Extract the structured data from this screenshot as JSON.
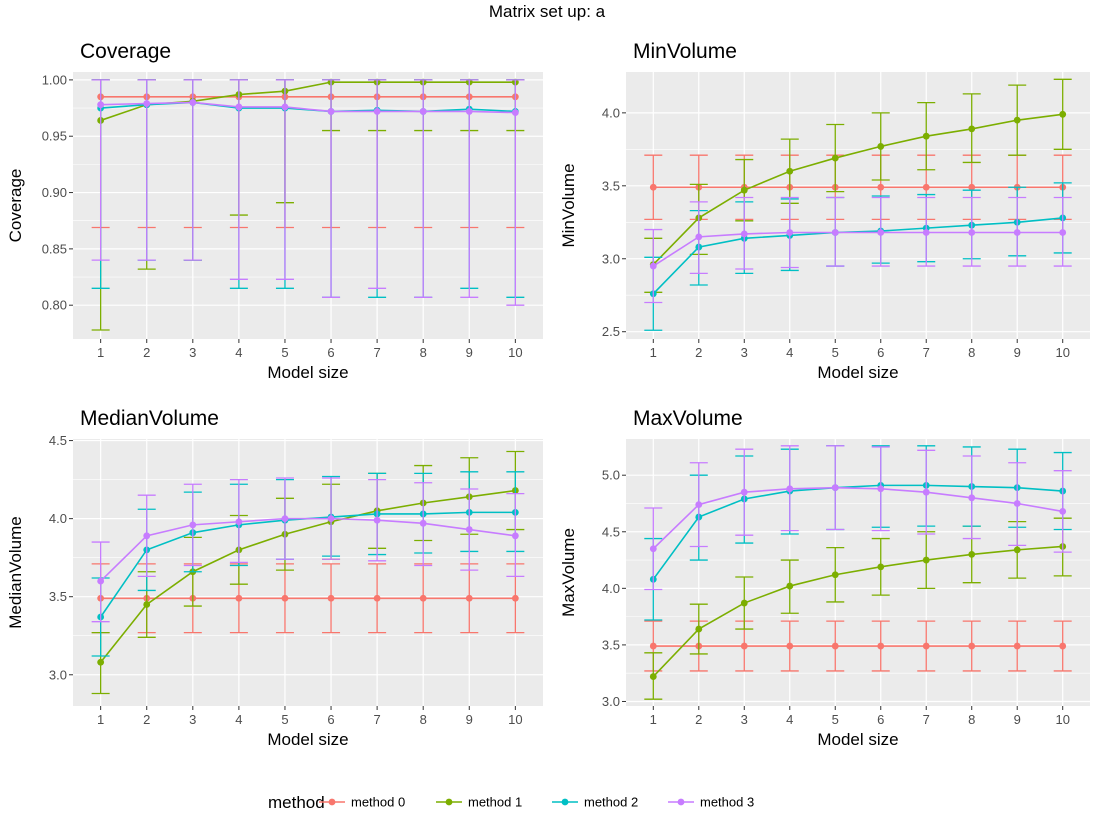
{
  "figure": {
    "title": "Matrix set up: a"
  },
  "legend": {
    "title": "method",
    "position": "bottom",
    "entries": [
      "method 0",
      "method 1",
      "method 2",
      "method 3"
    ]
  },
  "colors": {
    "method 0": "#F8766D",
    "method 1": "#7CAE00",
    "method 2": "#00BFC4",
    "method 3": "#C77CFF",
    "panel_bg": "#EBEBEB",
    "grid": "#FFFFFF"
  },
  "chart_data": [
    {
      "type": "line",
      "title": "Coverage",
      "xlabel": "Model size",
      "ylabel": "Coverage",
      "x": [
        1,
        2,
        3,
        4,
        5,
        6,
        7,
        8,
        9,
        10
      ],
      "ylim": [
        0.77,
        1.007
      ],
      "yticks": [
        0.8,
        0.85,
        0.9,
        0.95,
        1.0
      ],
      "ytick_labels": [
        "0.80",
        "0.85",
        "0.90",
        "0.95",
        "1.00"
      ],
      "grid": true,
      "error_bars": true,
      "series": [
        {
          "name": "method 0",
          "values": [
            0.985,
            0.985,
            0.985,
            0.985,
            0.985,
            0.985,
            0.985,
            0.985,
            0.985,
            0.985
          ],
          "lower": [
            0.869,
            0.869,
            0.869,
            0.869,
            0.869,
            0.869,
            0.869,
            0.869,
            0.869,
            0.869
          ],
          "upper": [
            1.0,
            1.0,
            1.0,
            1.0,
            1.0,
            1.0,
            1.0,
            1.0,
            1.0,
            1.0
          ]
        },
        {
          "name": "method 1",
          "values": [
            0.964,
            0.978,
            0.981,
            0.987,
            0.99,
            0.998,
            0.998,
            0.998,
            0.998,
            0.998
          ],
          "lower": [
            0.778,
            0.832,
            0.84,
            0.88,
            0.891,
            0.955,
            0.955,
            0.955,
            0.955,
            0.955
          ],
          "upper": [
            1.0,
            1.0,
            1.0,
            1.0,
            1.0,
            1.0,
            1.0,
            1.0,
            1.0,
            1.0
          ]
        },
        {
          "name": "method 2",
          "values": [
            0.975,
            0.978,
            0.98,
            0.975,
            0.975,
            0.972,
            0.973,
            0.972,
            0.974,
            0.972
          ],
          "lower": [
            0.815,
            0.84,
            0.84,
            0.815,
            0.815,
            0.807,
            0.807,
            0.807,
            0.815,
            0.807
          ],
          "upper": [
            1.0,
            1.0,
            1.0,
            1.0,
            1.0,
            1.0,
            1.0,
            1.0,
            1.0,
            1.0
          ]
        },
        {
          "name": "method 3",
          "values": [
            0.978,
            0.979,
            0.98,
            0.976,
            0.976,
            0.972,
            0.972,
            0.972,
            0.972,
            0.971
          ],
          "lower": [
            0.84,
            0.84,
            0.84,
            0.823,
            0.823,
            0.807,
            0.815,
            0.807,
            0.807,
            0.8
          ],
          "upper": [
            1.0,
            1.0,
            1.0,
            1.0,
            1.0,
            1.0,
            1.0,
            1.0,
            1.0,
            1.0
          ]
        }
      ]
    },
    {
      "type": "line",
      "title": "MinVolume",
      "xlabel": "Model size",
      "ylabel": "MinVolume",
      "x": [
        1,
        2,
        3,
        4,
        5,
        6,
        7,
        8,
        9,
        10
      ],
      "ylim": [
        2.45,
        4.28
      ],
      "yticks": [
        2.5,
        3.0,
        3.5,
        4.0
      ],
      "ytick_labels": [
        "2.5",
        "3.0",
        "3.5",
        "4.0"
      ],
      "grid": true,
      "error_bars": true,
      "series": [
        {
          "name": "method 0",
          "values": [
            3.49,
            3.49,
            3.49,
            3.49,
            3.49,
            3.49,
            3.49,
            3.49,
            3.49,
            3.49
          ],
          "lower": [
            3.27,
            3.27,
            3.27,
            3.27,
            3.27,
            3.27,
            3.27,
            3.27,
            3.27,
            3.27
          ],
          "upper": [
            3.71,
            3.71,
            3.71,
            3.71,
            3.71,
            3.71,
            3.71,
            3.71,
            3.71,
            3.71
          ]
        },
        {
          "name": "method 1",
          "values": [
            2.96,
            3.28,
            3.47,
            3.6,
            3.69,
            3.77,
            3.84,
            3.89,
            3.95,
            3.99
          ],
          "lower": [
            2.77,
            3.03,
            3.26,
            3.38,
            3.46,
            3.54,
            3.61,
            3.66,
            3.71,
            3.75
          ],
          "upper": [
            3.14,
            3.51,
            3.68,
            3.82,
            3.92,
            4.0,
            4.07,
            4.13,
            4.19,
            4.23
          ]
        },
        {
          "name": "method 2",
          "values": [
            2.76,
            3.08,
            3.14,
            3.16,
            3.18,
            3.19,
            3.21,
            3.23,
            3.25,
            3.28
          ],
          "lower": [
            2.51,
            2.82,
            2.9,
            2.92,
            2.95,
            2.97,
            2.98,
            3.0,
            3.02,
            3.04
          ],
          "upper": [
            3.01,
            3.33,
            3.39,
            3.41,
            3.42,
            3.43,
            3.44,
            3.47,
            3.49,
            3.52
          ]
        },
        {
          "name": "method 3",
          "values": [
            2.95,
            3.15,
            3.17,
            3.18,
            3.18,
            3.18,
            3.18,
            3.18,
            3.18,
            3.18
          ],
          "lower": [
            2.7,
            2.9,
            2.93,
            2.94,
            2.95,
            2.95,
            2.95,
            2.95,
            2.95,
            2.95
          ],
          "upper": [
            3.2,
            3.39,
            3.42,
            3.42,
            3.42,
            3.42,
            3.42,
            3.42,
            3.42,
            3.42
          ]
        }
      ]
    },
    {
      "type": "line",
      "title": "MedianVolume",
      "xlabel": "Model size",
      "ylabel": "MedianVolume",
      "x": [
        1,
        2,
        3,
        4,
        5,
        6,
        7,
        8,
        9,
        10
      ],
      "ylim": [
        2.8,
        4.51
      ],
      "yticks": [
        3.0,
        3.5,
        4.0,
        4.5
      ],
      "ytick_labels": [
        "3.0",
        "3.5",
        "4.0",
        "4.5"
      ],
      "grid": true,
      "error_bars": true,
      "series": [
        {
          "name": "method 0",
          "values": [
            3.49,
            3.49,
            3.49,
            3.49,
            3.49,
            3.49,
            3.49,
            3.49,
            3.49,
            3.49
          ],
          "lower": [
            3.27,
            3.27,
            3.27,
            3.27,
            3.27,
            3.27,
            3.27,
            3.27,
            3.27,
            3.27
          ],
          "upper": [
            3.71,
            3.71,
            3.71,
            3.71,
            3.71,
            3.71,
            3.71,
            3.71,
            3.71,
            3.71
          ]
        },
        {
          "name": "method 1",
          "values": [
            3.08,
            3.45,
            3.66,
            3.8,
            3.9,
            3.98,
            4.05,
            4.1,
            4.14,
            4.18
          ],
          "lower": [
            2.88,
            3.24,
            3.44,
            3.58,
            3.67,
            3.74,
            3.81,
            3.86,
            3.9,
            3.93
          ],
          "upper": [
            3.27,
            3.66,
            3.88,
            4.02,
            4.13,
            4.22,
            4.29,
            4.34,
            4.39,
            4.43
          ]
        },
        {
          "name": "method 2",
          "values": [
            3.37,
            3.8,
            3.91,
            3.96,
            3.99,
            4.01,
            4.03,
            4.03,
            4.04,
            4.04
          ],
          "lower": [
            3.12,
            3.54,
            3.66,
            3.7,
            3.74,
            3.76,
            3.77,
            3.78,
            3.79,
            3.79
          ],
          "upper": [
            3.62,
            4.06,
            4.17,
            4.22,
            4.25,
            4.27,
            4.29,
            4.29,
            4.3,
            4.3
          ]
        },
        {
          "name": "method 3",
          "values": [
            3.6,
            3.89,
            3.96,
            3.98,
            4.0,
            4.0,
            3.99,
            3.97,
            3.93,
            3.89
          ],
          "lower": [
            3.34,
            3.63,
            3.7,
            3.72,
            3.74,
            3.74,
            3.73,
            3.7,
            3.67,
            3.63
          ],
          "upper": [
            3.85,
            4.15,
            4.22,
            4.25,
            4.26,
            4.26,
            4.25,
            4.23,
            4.19,
            4.16
          ]
        }
      ]
    },
    {
      "type": "line",
      "title": "MaxVolume",
      "xlabel": "Model size",
      "ylabel": "MaxVolume",
      "x": [
        1,
        2,
        3,
        4,
        5,
        6,
        7,
        8,
        9,
        10
      ],
      "ylim": [
        2.96,
        5.32
      ],
      "yticks": [
        3.0,
        3.5,
        4.0,
        4.5,
        5.0
      ],
      "ytick_labels": [
        "3.0",
        "3.5",
        "4.0",
        "4.5",
        "5.0"
      ],
      "grid": true,
      "error_bars": true,
      "series": [
        {
          "name": "method 0",
          "values": [
            3.49,
            3.49,
            3.49,
            3.49,
            3.49,
            3.49,
            3.49,
            3.49,
            3.49,
            3.49
          ],
          "lower": [
            3.27,
            3.27,
            3.27,
            3.27,
            3.27,
            3.27,
            3.27,
            3.27,
            3.27,
            3.27
          ],
          "upper": [
            3.71,
            3.71,
            3.71,
            3.71,
            3.71,
            3.71,
            3.71,
            3.71,
            3.71,
            3.71
          ]
        },
        {
          "name": "method 1",
          "values": [
            3.22,
            3.64,
            3.87,
            4.02,
            4.12,
            4.19,
            4.25,
            4.3,
            4.34,
            4.37
          ],
          "lower": [
            3.02,
            3.42,
            3.64,
            3.78,
            3.88,
            3.94,
            4.0,
            4.05,
            4.09,
            4.11
          ],
          "upper": [
            3.43,
            3.86,
            4.1,
            4.25,
            4.36,
            4.44,
            4.5,
            4.55,
            4.59,
            4.62
          ]
        },
        {
          "name": "method 2",
          "values": [
            4.08,
            4.63,
            4.79,
            4.86,
            4.89,
            4.91,
            4.91,
            4.9,
            4.89,
            4.86
          ],
          "lower": [
            3.72,
            4.25,
            4.4,
            4.48,
            4.52,
            4.54,
            4.55,
            4.55,
            4.54,
            4.52
          ],
          "upper": [
            4.44,
            5.0,
            5.17,
            5.23,
            5.26,
            5.26,
            5.26,
            5.25,
            5.23,
            5.2
          ]
        },
        {
          "name": "method 3",
          "values": [
            4.35,
            4.74,
            4.85,
            4.88,
            4.89,
            4.88,
            4.85,
            4.8,
            4.75,
            4.68
          ],
          "lower": [
            3.99,
            4.37,
            4.47,
            4.51,
            4.52,
            4.51,
            4.48,
            4.44,
            4.38,
            4.32
          ],
          "upper": [
            4.71,
            5.11,
            5.23,
            5.26,
            5.26,
            5.25,
            5.22,
            5.17,
            5.11,
            5.04
          ]
        }
      ]
    }
  ]
}
